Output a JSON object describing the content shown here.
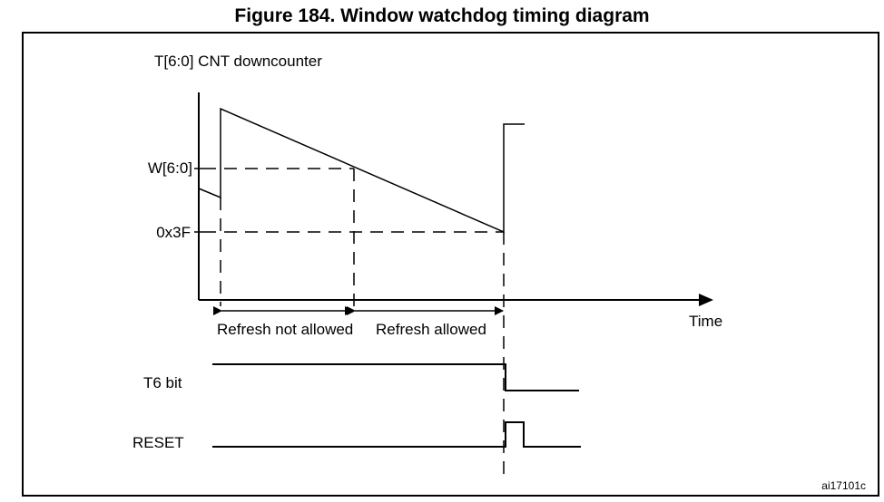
{
  "figure": {
    "title": "Figure 184. Window watchdog timing diagram",
    "reference_code": "ai17101c"
  },
  "diagram": {
    "y_axis_label": "T[6:0] CNT downcounter",
    "x_axis_label": "Time",
    "levels": {
      "window": "W[6:0]",
      "threshold": "0x3F"
    },
    "intervals": {
      "refresh_not_allowed": "Refresh not allowed",
      "refresh_allowed": "Refresh allowed"
    },
    "signals": {
      "t6_bit": "T6 bit",
      "reset": "RESET"
    }
  }
}
